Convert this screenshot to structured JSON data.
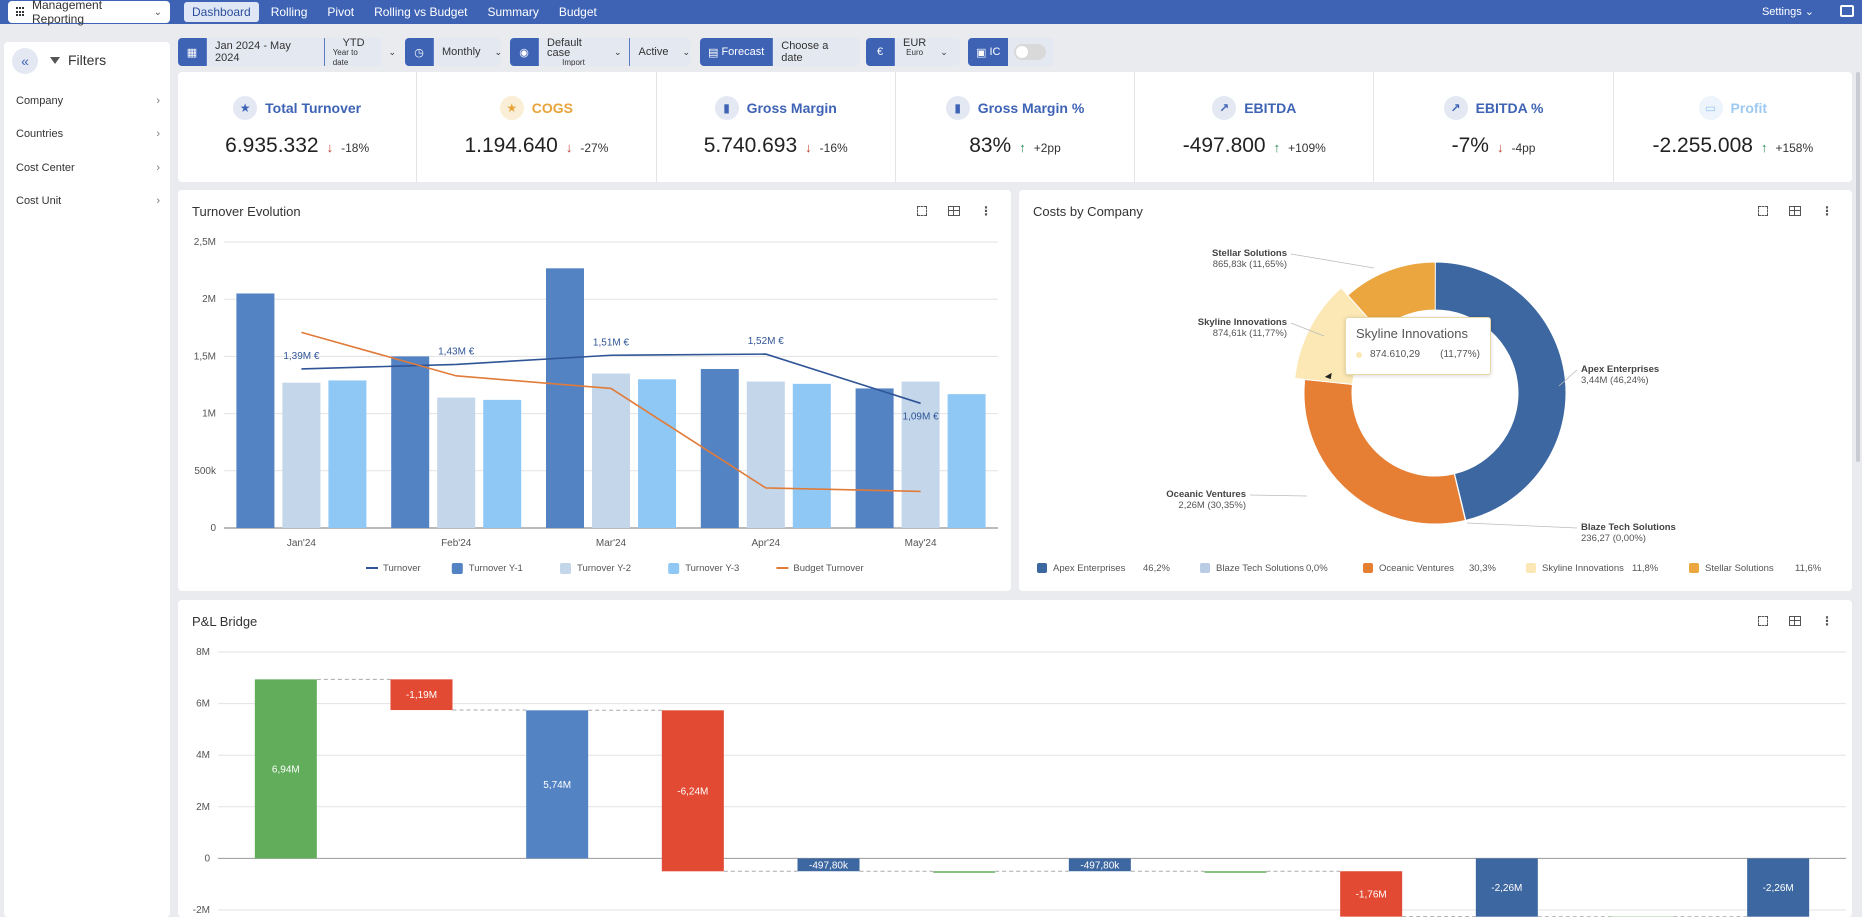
{
  "app": {
    "selector_label": "Management Reporting",
    "tabs": [
      {
        "label": "Dashboard",
        "active": true
      },
      {
        "label": "Rolling",
        "active": false
      },
      {
        "label": "Pivot",
        "active": false
      },
      {
        "label": "Rolling vs Budget",
        "active": false
      },
      {
        "label": "Summary",
        "active": false
      },
      {
        "label": "Budget",
        "active": false
      }
    ],
    "settings_label": "Settings"
  },
  "sidebar": {
    "title": "Filters",
    "items": [
      "Company",
      "Countries",
      "Cost Center",
      "Cost Unit"
    ]
  },
  "toolbar": {
    "period": "Jan 2024 - May 2024",
    "period_mode": "YTD",
    "period_mode_sub": "Year to date",
    "granularity": "Monthly",
    "scenario": "Default case",
    "scenario_sub": "Import",
    "status": "Active",
    "forecast_label": "Forecast",
    "forecast_placeholder": "Choose a date",
    "currency": "EUR",
    "currency_sub": "Euro",
    "currency_symbol": "€",
    "ic_label": "IC"
  },
  "kpis": [
    {
      "label": "Total Turnover",
      "value": "6.935.332",
      "delta": "-18%",
      "dir": "down",
      "icon": "star-icon",
      "color": "#3e63b5"
    },
    {
      "label": "COGS",
      "value": "1.194.640",
      "delta": "-27%",
      "dir": "down",
      "icon": "star-icon",
      "color": "#e8a33a"
    },
    {
      "label": "Gross Margin",
      "value": "5.740.693",
      "delta": "-16%",
      "dir": "down",
      "icon": "bar-chart-icon",
      "color": "#3e63b5"
    },
    {
      "label": "Gross Margin %",
      "value": "83%",
      "delta": "+2pp",
      "dir": "up",
      "icon": "bar-chart-icon",
      "color": "#3e63b5"
    },
    {
      "label": "EBITDA",
      "value": "-497.800",
      "delta": "+109%",
      "dir": "up",
      "icon": "trend-icon",
      "color": "#3e63b5"
    },
    {
      "label": "EBITDA %",
      "value": "-7%",
      "delta": "-4pp",
      "dir": "down",
      "icon": "trend-icon",
      "color": "#3e63b5"
    },
    {
      "label": "Profit",
      "value": "-2.255.008",
      "delta": "+158%",
      "dir": "up",
      "icon": "money-icon",
      "color": "#9ec9f0"
    }
  ],
  "panels": {
    "turnover_title": "Turnover Evolution",
    "costs_title": "Costs by Company",
    "bridge_title": "P&L Bridge"
  },
  "tooltip": {
    "title": "Skyline Innovations",
    "value": "874.610,29",
    "pct": "(11,77%)"
  },
  "chart_data": [
    {
      "type": "bar",
      "title": "Turnover Evolution",
      "categories": [
        "Jan'24",
        "Feb'24",
        "Mar'24",
        "Apr'24",
        "May'24"
      ],
      "ylim": [
        0,
        2500000
      ],
      "yticks": [
        "0",
        "500k",
        "1M",
        "1,5M",
        "2M",
        "2,5M"
      ],
      "series": [
        {
          "name": "Turnover Y-1",
          "kind": "bar",
          "color": "#5383c3",
          "values": [
            2050000,
            1500000,
            2270000,
            1390000,
            1220000
          ]
        },
        {
          "name": "Turnover Y-2",
          "kind": "bar",
          "color": "#c3d6ea",
          "values": [
            1270000,
            1140000,
            1350000,
            1280000,
            1280000
          ]
        },
        {
          "name": "Turnover Y-3",
          "kind": "bar",
          "color": "#90c8f5",
          "values": [
            1290000,
            1120000,
            1300000,
            1260000,
            1170000
          ]
        },
        {
          "name": "Turnover",
          "kind": "line",
          "color": "#2f5597",
          "values": [
            1390000,
            1430000,
            1510000,
            1520000,
            1090000
          ]
        },
        {
          "name": "Budget Turnover",
          "kind": "line",
          "color": "#e07b39",
          "values": [
            1710000,
            1330000,
            1220000,
            350000,
            320000
          ]
        }
      ],
      "labels": [
        "1,39M €",
        "1,43M €",
        "1,51M €",
        "1,52M €",
        "1,09M €"
      ],
      "legend_order": [
        "Turnover",
        "Turnover Y-1",
        "Turnover Y-2",
        "Turnover Y-3",
        "Budget Turnover"
      ]
    },
    {
      "type": "pie",
      "title": "Costs by Company",
      "slices": [
        {
          "name": "Apex Enterprises",
          "value": 3440000,
          "label_value": "3,44M",
          "pct": "46,24%",
          "legend_pct": "46,2%",
          "color": "#3d67a0"
        },
        {
          "name": "Blaze Tech Solutions",
          "value": 236.27,
          "label_value": "236,27",
          "pct": "0,00%",
          "legend_pct": "0,0%",
          "color": "#b9cde5"
        },
        {
          "name": "Oceanic Ventures",
          "value": 2260000,
          "label_value": "2,26M",
          "pct": "30,35%",
          "legend_pct": "30,3%",
          "color": "#e67e33"
        },
        {
          "name": "Skyline Innovations",
          "value": 874610.29,
          "label_value": "874,61k",
          "pct": "11,77%",
          "legend_pct": "11,8%",
          "color": "#fbe8b5"
        },
        {
          "name": "Stellar Solutions",
          "value": 865830,
          "label_value": "865,83k",
          "pct": "11,65%",
          "legend_pct": "11,6%",
          "color": "#eba640"
        }
      ]
    },
    {
      "type": "bar",
      "title": "P&L Bridge",
      "ylim": [
        -2000000,
        8000000
      ],
      "yticks": [
        "-2M",
        "0",
        "2M",
        "4M",
        "6M",
        "8M"
      ],
      "steps": [
        {
          "kind": "total",
          "value": 6940000,
          "label": "6,94M",
          "color": "#62ad5b"
        },
        {
          "kind": "delta",
          "value": -1190000,
          "label": "-1,19M",
          "color": "#e24a33"
        },
        {
          "kind": "total",
          "value": 5740000,
          "label": "5,74M",
          "color": "#5383c3"
        },
        {
          "kind": "delta",
          "value": -6240000,
          "label": "-6,24M",
          "color": "#e24a33"
        },
        {
          "kind": "total",
          "value": -497800,
          "label": "-497,80k",
          "color": "#3d67a0"
        },
        {
          "kind": "delta",
          "value": 0,
          "label": "",
          "color": "#62ad5b"
        },
        {
          "kind": "total",
          "value": -497800,
          "label": "-497,80k",
          "color": "#3d67a0"
        },
        {
          "kind": "delta",
          "value": 0,
          "label": "",
          "color": "#62ad5b"
        },
        {
          "kind": "delta",
          "value": -1760000,
          "label": "-1,76M",
          "color": "#e24a33"
        },
        {
          "kind": "total",
          "value": -2260000,
          "label": "-2,26M",
          "color": "#3d67a0"
        },
        {
          "kind": "delta",
          "value": 0,
          "label": "",
          "color": "#62ad5b"
        },
        {
          "kind": "total",
          "value": -2260000,
          "label": "-2,26M",
          "color": "#3d67a0"
        }
      ]
    }
  ]
}
